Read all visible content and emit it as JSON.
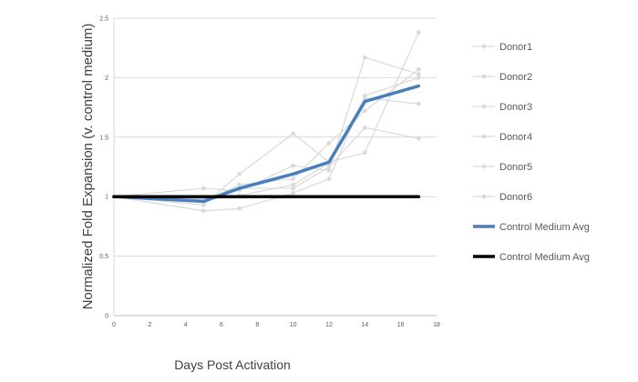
{
  "chart_data": {
    "type": "line",
    "title": "",
    "xlabel": "Days Post Activation",
    "ylabel": "Normalized Fold Expansion (v. control medium)",
    "xlim": [
      0,
      18
    ],
    "ylim": [
      0,
      2.5
    ],
    "xticks": [
      0,
      2,
      4,
      6,
      8,
      10,
      12,
      14,
      16,
      18
    ],
    "yticks": [
      "0",
      "0.5",
      "1",
      "1.5",
      "2",
      "2.5"
    ],
    "grid": "horizontal",
    "legend_position": "right",
    "series": [
      {
        "name": "Donor1",
        "color": "#d9d9d9",
        "marker": true,
        "width": 1.2,
        "x": [
          0,
          5,
          7,
          10,
          12,
          14,
          17
        ],
        "y": [
          1.0,
          0.88,
          0.9,
          1.03,
          1.15,
          1.85,
          2.0
        ]
      },
      {
        "name": "Donor2",
        "color": "#d9d9d9",
        "marker": true,
        "width": 1.2,
        "x": [
          0,
          5,
          7,
          10,
          12,
          14,
          17
        ],
        "y": [
          1.0,
          0.98,
          1.07,
          1.07,
          1.25,
          1.58,
          1.49
        ]
      },
      {
        "name": "Donor3",
        "color": "#d9d9d9",
        "marker": true,
        "width": 1.2,
        "x": [
          0,
          5,
          7,
          10,
          12,
          14,
          17
        ],
        "y": [
          1.0,
          1.07,
          1.05,
          1.26,
          1.22,
          2.17,
          2.03
        ]
      },
      {
        "name": "Donor4",
        "color": "#d9d9d9",
        "marker": true,
        "width": 1.2,
        "x": [
          0,
          5,
          7,
          10,
          12,
          14,
          17
        ],
        "y": [
          1.0,
          0.93,
          1.19,
          1.53,
          1.29,
          1.37,
          2.38
        ]
      },
      {
        "name": "Donor5",
        "color": "#d9d9d9",
        "marker": true,
        "width": 1.2,
        "x": [
          0,
          5,
          7,
          10,
          12,
          14,
          17
        ],
        "y": [
          1.0,
          0.96,
          1.1,
          1.15,
          1.45,
          1.72,
          2.07
        ]
      },
      {
        "name": "Donor6",
        "color": "#d9d9d9",
        "marker": true,
        "width": 1.2,
        "x": [
          0,
          5,
          7,
          10,
          12,
          14,
          17
        ],
        "y": [
          1.0,
          0.97,
          1.01,
          1.1,
          1.28,
          1.83,
          1.78
        ]
      },
      {
        "name": "Control Medium Avg",
        "color": "#4a7ebb",
        "marker": false,
        "width": 3.5,
        "x": [
          0,
          5,
          7,
          10,
          12,
          14,
          17
        ],
        "y": [
          1.0,
          0.96,
          1.07,
          1.19,
          1.29,
          1.8,
          1.93
        ]
      },
      {
        "name": "Control Medium Avg",
        "color": "#000000",
        "marker": false,
        "width": 3.5,
        "x": [
          0,
          5,
          7,
          10,
          12,
          14,
          17
        ],
        "y": [
          1.0,
          1.0,
          1.0,
          1.0,
          1.0,
          1.0,
          1.0
        ]
      }
    ]
  }
}
